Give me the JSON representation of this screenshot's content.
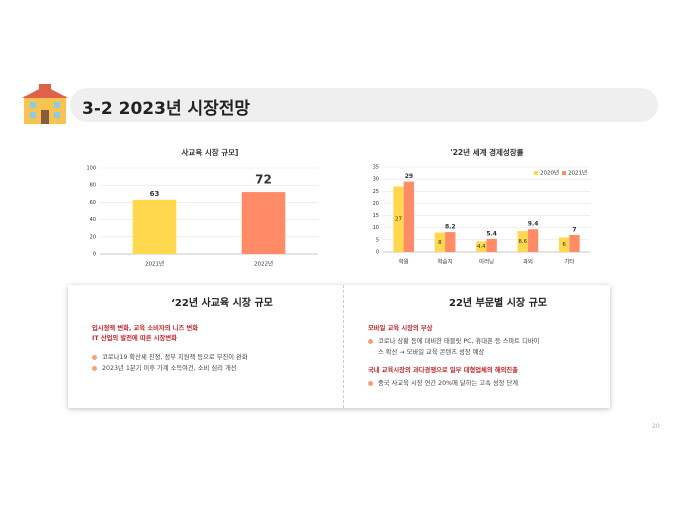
{
  "header": {
    "title": "3-2 2023년 시장전망"
  },
  "chart_data": [
    {
      "type": "bar",
      "title": "사교육 시장 규모]",
      "categories": [
        "2021년",
        "2022년"
      ],
      "values": [
        63,
        72
      ],
      "colors": [
        "#ffd84d",
        "#ff8c66"
      ],
      "ylim": [
        0,
        100
      ],
      "yticks": [
        0,
        20,
        40,
        60,
        80,
        100
      ],
      "grid": true
    },
    {
      "type": "bar",
      "title": "'22년 세계 경제성장률",
      "categories": [
        "학원",
        "학습지",
        "이러닝",
        "과외",
        "기타"
      ],
      "series": [
        {
          "name": "2020년",
          "color": "#ffd84d",
          "values": [
            27,
            8,
            4.4,
            8.6,
            6
          ]
        },
        {
          "name": "2021년",
          "color": "#ff8c66",
          "values": [
            29,
            8.2,
            5.4,
            9.4,
            7
          ]
        }
      ],
      "ylim": [
        0,
        35
      ],
      "yticks": [
        0,
        5,
        10,
        15,
        20,
        25,
        30,
        35
      ],
      "grid": true,
      "legend": "top-right"
    }
  ],
  "panels": [
    {
      "title": "‘22년 사교육 시장 규모",
      "groups": [
        {
          "headings": [
            "입시정책 변화, 교육 소비자의 니즈 변화",
            "IT 산업의 발전에 따른 시장변화"
          ],
          "bullets": [
            [
              "코로나19 확산세 진정, 정부 지원책 등으로 부진이 완화"
            ],
            [
              "2023년 1분기 이후 가계 소득여건, 소비 심리 개선"
            ]
          ]
        }
      ]
    },
    {
      "title": "22년 부문별 시장 규모",
      "groups": [
        {
          "headings": [
            "모바일 교육 시장의 부상"
          ],
          "bullets": [
            [
              "코로나 상황 등에 대비한 태블릿 PC, 휴대폰 등 스마트 디바이",
              "스 확산 → 모바일 교육 콘텐츠 성장 예상"
            ]
          ]
        },
        {
          "headings": [
            "국내 교육시장의 과다경쟁으로 일부 대형업체의 해외진출"
          ],
          "bullets": [
            [
              "중국 사교육 시장 연간 20%에 달하는 고속 성장 단계"
            ]
          ]
        }
      ]
    }
  ],
  "page_number": "20"
}
